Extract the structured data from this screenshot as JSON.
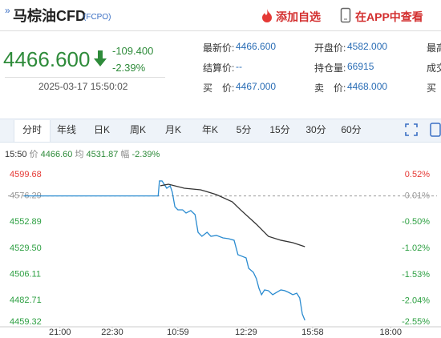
{
  "header": {
    "title": "马棕油CFD",
    "code": "(FCPO)",
    "actions": [
      "添加自选",
      "在APP中查看"
    ]
  },
  "quote": {
    "price": "4466.600",
    "change": "-109.400",
    "change_pct": "-2.39%",
    "time": "2025-03-17 15:50:02"
  },
  "fields": [
    [
      {
        "label": "最新价:",
        "value": "4466.600"
      },
      {
        "label": "开盘价:",
        "value": "4582.000"
      },
      {
        "label": "最高",
        "value": ""
      }
    ],
    [
      {
        "label": "结算价:",
        "value": "--"
      },
      {
        "label": "持仓量:",
        "value": "66915"
      },
      {
        "label": "成交",
        "value": ""
      }
    ],
    [
      {
        "label": "买　价:",
        "value": "4467.000"
      },
      {
        "label": "卖　价:",
        "value": "4468.000"
      },
      {
        "label": "买",
        "value": ""
      }
    ]
  ],
  "tabs": [
    "分时",
    "年线",
    "日K",
    "周K",
    "月K",
    "年K",
    "5分",
    "15分",
    "30分",
    "60分"
  ],
  "status": {
    "time": "15:50",
    "price_label": "价",
    "price": "4466.60",
    "avg_label": "均",
    "avg": "4531.87",
    "pct_label": "幅",
    "pct": "-2.39%"
  },
  "chart": {
    "type": "line",
    "ref": 4576.29,
    "up_color": "#e53935",
    "down_color": "#2ea043",
    "flat_color": "#999999",
    "ylim": [
      4459.32,
      4599.68
    ],
    "yticks": [
      4599.68,
      4576.29,
      4552.89,
      {
        "value": 4529.5,
        "label": "4529.50"
      },
      4506.11,
      4482.71,
      4459.32
    ],
    "y2lim": [
      -2.55,
      0.52
    ],
    "y2ticks": [
      {
        "value": 0.52,
        "label": "0.52%"
      },
      {
        "value": 0.01,
        "label": "0.01%"
      },
      {
        "value": -0.5,
        "label": "-0.50%"
      },
      {
        "value": -1.02,
        "label": "-1.02%"
      },
      {
        "value": -1.53,
        "label": "-1.53%"
      },
      {
        "value": -2.04,
        "label": "-2.04%"
      },
      {
        "value": -2.55,
        "label": "-2.55%"
      }
    ],
    "xlim": [
      0,
      100
    ],
    "xticks": [
      {
        "value": 12.1,
        "label": "21:00"
      },
      {
        "value": 24.3,
        "label": "22:30"
      },
      {
        "value": 39.6,
        "label": "10:59"
      },
      {
        "value": 55.5,
        "label": "12:29"
      },
      {
        "value": 71,
        "label": "15:58"
      },
      {
        "value": 89.2,
        "label": "18:00"
      }
    ],
    "series": [
      {
        "color": "#2a8bd0",
        "x": [
          3.7,
          35.0,
          35.3,
          35.9,
          36.4,
          37.0,
          37.8,
          38.3,
          38.9,
          39.6,
          40.7,
          41.5,
          42.6,
          43.6,
          44.3,
          45.2,
          46.4,
          47.3,
          48.6,
          50.1,
          51.4,
          52.7,
          53.6,
          54.6,
          55.5,
          56.1,
          57.2,
          57.9,
          58.5,
          59.1,
          59.8,
          60.7,
          61.7,
          62.6,
          63.6,
          64.5,
          65.4,
          66.4,
          67.3,
          68.0,
          68.6,
          69.2
        ],
        "values": [
          4576.3,
          4576.3,
          4589.7,
          4589.7,
          4586.8,
          4583.2,
          4585.4,
          4579.6,
          4566.7,
          4563.9,
          4563.9,
          4561.0,
          4563.2,
          4559.6,
          4543.8,
          4540.2,
          4543.8,
          4540.2,
          4541.0,
          4538.8,
          4538.1,
          4536.7,
          4523.8,
          4522.3,
          4520.9,
          4511.6,
          4508.0,
          4502.3,
          4493.7,
          4488.0,
          4492.3,
          4491.6,
          4488.0,
          4490.1,
          4492.3,
          4491.6,
          4490.1,
          4488.0,
          4489.4,
          4485.1,
          4470.8,
          4465.1
        ]
      },
      {
        "color": "#333333",
        "x": [
          35.5,
          37.4,
          41.1,
          44.9,
          48.6,
          52.3,
          54.2,
          57.9,
          60.7,
          63.6,
          66.4,
          69.2
        ],
        "values": [
          4585.4,
          4586.8,
          4583.2,
          4581.8,
          4577.5,
          4571.0,
          4563.9,
          4551.0,
          4540.2,
          4536.7,
          4534.5,
          4530.9
        ]
      }
    ]
  }
}
